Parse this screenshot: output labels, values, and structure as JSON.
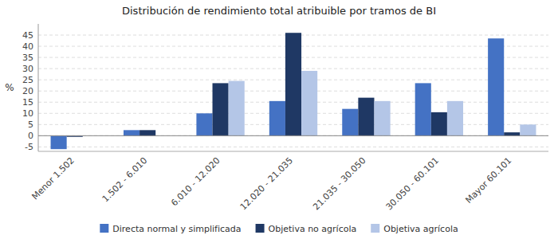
{
  "chart_data": {
    "type": "bar",
    "title": "Distribución de rendimiento total atribuible por tramos de BI",
    "categories": [
      "Menor 1.502",
      "1.502 - 6.010",
      "6.010 - 12.020",
      "12.020 - 21.035",
      "21.035 - 30.050",
      "30.050 - 60.101",
      "Mayor 60.101"
    ],
    "series": [
      {
        "name": "Directa normal y simplificada",
        "color": "#4472c4",
        "values": [
          -6.0,
          2.5,
          10.0,
          15.5,
          12.0,
          23.5,
          43.5
        ]
      },
      {
        "name": "Objetiva no agrícola",
        "color": "#1f3864",
        "values": [
          -0.5,
          2.5,
          23.5,
          46.0,
          17.0,
          10.5,
          1.5
        ]
      },
      {
        "name": "Objetiva agrícola",
        "color": "#b4c6e7",
        "values": [
          0.0,
          0.0,
          24.5,
          29.0,
          15.5,
          15.5,
          5.0
        ]
      }
    ],
    "ylabel": "%",
    "ylim": [
      -7,
      50
    ],
    "yticks": [
      -5,
      0,
      5,
      10,
      15,
      20,
      25,
      30,
      35,
      40,
      45
    ],
    "grid": true,
    "legend": "bottom"
  }
}
